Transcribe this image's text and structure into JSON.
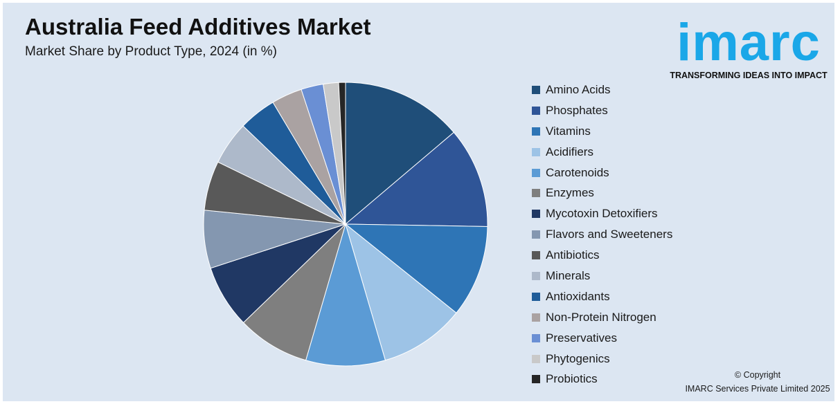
{
  "header": {
    "title": "Australia Feed Additives Market",
    "subtitle": "Market Share by Product Type, 2024 (in %)"
  },
  "logo": {
    "word": "imarc",
    "tagline": "TRANSFORMING IDEAS INTO IMPACT",
    "color": "#1aa7e8"
  },
  "footer": {
    "copyright_line1": "© Copyright",
    "copyright_line2": "IMARC Services Private Limited 2025"
  },
  "chart_data": {
    "type": "pie",
    "title": "Australia Feed Additives Market",
    "subtitle": "Market Share by Product Type, 2024 (in %)",
    "legend_placement": "right",
    "start_angle_deg": 0,
    "direction": "clockwise",
    "categories": [
      "Amino Acids",
      "Phosphates",
      "Vitamins",
      "Acidifiers",
      "Carotenoids",
      "Enzymes",
      "Mycotoxin Detoxifiers",
      "Flavors and Sweeteners",
      "Antibiotics",
      "Minerals",
      "Antioxidants",
      "Non-Protein Nitrogen",
      "Preservatives",
      "Phytogenics",
      "Probiotics"
    ],
    "values": [
      14.2,
      11.8,
      10.8,
      10.0,
      9.3,
      8.5,
      7.4,
      6.8,
      5.8,
      5.1,
      4.4,
      3.6,
      2.6,
      1.8,
      0.8
    ],
    "colors": [
      "#1f4e79",
      "#2f5597",
      "#2e75b6",
      "#9dc3e6",
      "#5b9bd5",
      "#7f7f7f",
      "#203864",
      "#8497b0",
      "#595959",
      "#adb9ca",
      "#1f5c99",
      "#aaa2a2",
      "#6a8fd4",
      "#c9c9c9",
      "#262626"
    ]
  }
}
